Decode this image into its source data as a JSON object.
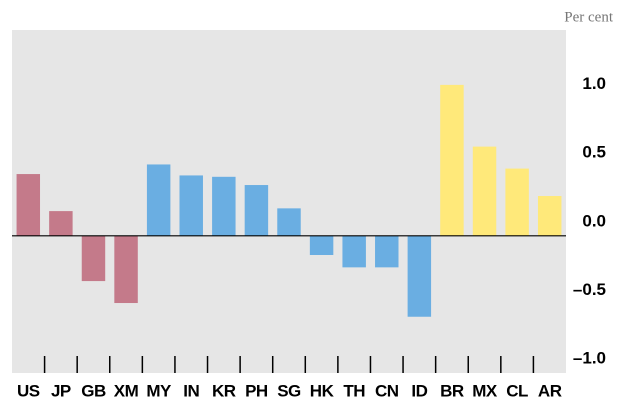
{
  "chart_data": {
    "type": "bar",
    "unit_label": "Per cent",
    "categories": [
      "US",
      "JP",
      "GB",
      "XM",
      "MY",
      "IN",
      "KR",
      "PH",
      "SG",
      "HK",
      "TH",
      "CN",
      "ID",
      "BR",
      "MX",
      "CL",
      "AR"
    ],
    "values": [
      0.45,
      0.18,
      -0.33,
      -0.49,
      0.52,
      0.44,
      0.43,
      0.37,
      0.2,
      -0.14,
      -0.23,
      -0.23,
      -0.59,
      1.1,
      0.65,
      0.49,
      0.29
    ],
    "colors": [
      "#c47a8a",
      "#c47a8a",
      "#c47a8a",
      "#c47a8a",
      "#6aaee2",
      "#6aaee2",
      "#6aaee2",
      "#6aaee2",
      "#6aaee2",
      "#6aaee2",
      "#6aaee2",
      "#6aaee2",
      "#6aaee2",
      "#ffe97a",
      "#ffe97a",
      "#ffe97a",
      "#ffe97a"
    ],
    "ylim": [
      -1.0,
      1.5
    ],
    "yticks": [
      {
        "value": 1.0,
        "label": "1.0"
      },
      {
        "value": 0.5,
        "label": "0.5"
      },
      {
        "value": 0.0,
        "label": "0.0"
      },
      {
        "value": -0.5,
        "label": "–0.5"
      },
      {
        "value": -1.0,
        "label": "–1.0"
      }
    ]
  }
}
